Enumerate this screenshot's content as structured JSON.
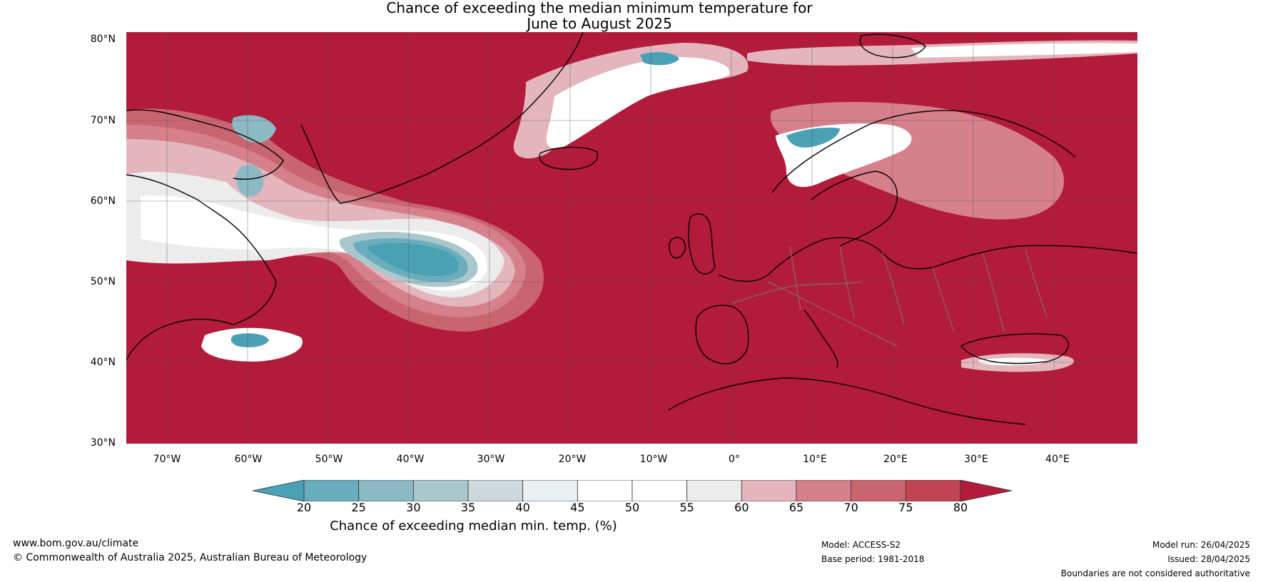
{
  "title_line1": "Chance of exceeding the median minimum temperature for",
  "title_line2": "June to August 2025",
  "lat_labels": [
    "80°N",
    "70°N",
    "60°N",
    "50°N",
    "40°N",
    "30°N"
  ],
  "lon_labels": [
    "70°W",
    "60°W",
    "50°W",
    "40°W",
    "30°W",
    "20°W",
    "10°W",
    "0°",
    "10°E",
    "20°E",
    "30°E",
    "40°E"
  ],
  "colorbar": {
    "ticks": [
      "20",
      "25",
      "30",
      "35",
      "40",
      "45",
      "50",
      "55",
      "60",
      "65",
      "70",
      "75",
      "80"
    ],
    "colors": [
      "#4aa0b5",
      "#6aadbd",
      "#8bb9c4",
      "#aac7cc",
      "#cfd9dc",
      "#eaf1f3",
      "#ffffff",
      "#ffffff",
      "#ececec",
      "#e2b6bc",
      "#d6808b",
      "#c96571",
      "#c04452",
      "#b31b3a",
      "#b31b3a"
    ],
    "label": "Chance of exceeding median min. temp. (%)"
  },
  "footer": {
    "url": "www.bom.gov.au/climate",
    "copyright": "© Commonwealth of Australia 2025, Australian Bureau of Meteorology",
    "model": "Model: ACCESS-S2",
    "base_period": "Base period: 1981-2018",
    "model_run": "Model run: 26/04/2025",
    "issued": "Issued: 28/04/2025",
    "disclaimer": "Boundaries are not considered authoritative"
  }
}
